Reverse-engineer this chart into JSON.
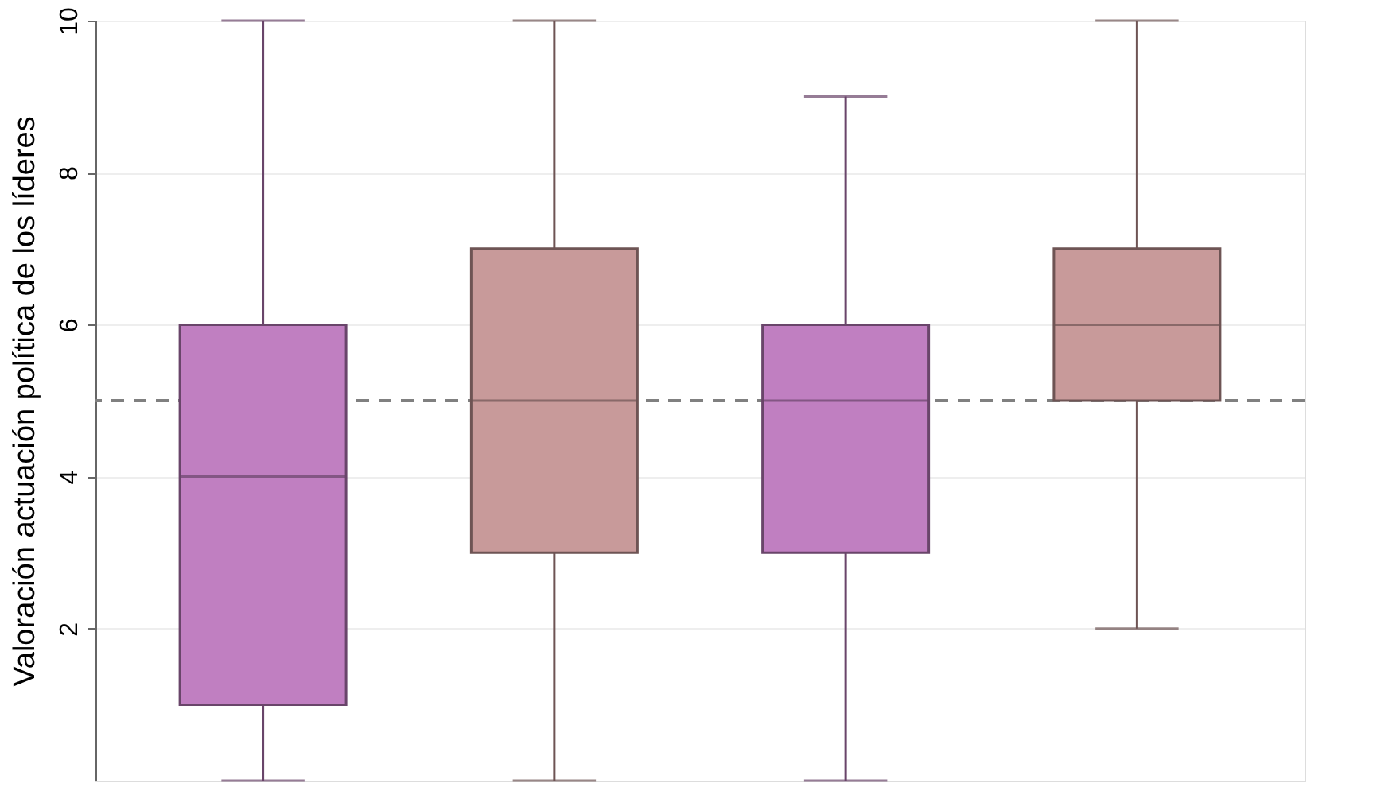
{
  "chart_data": {
    "type": "box",
    "ylabel": "Valoración actuación política de los líderes",
    "categories": [
      null,
      null,
      null,
      null
    ],
    "colors": [
      "#c07fc1",
      "#c89a9a",
      "#c07fc1",
      "#c89a9a"
    ],
    "boxes": [
      {
        "low": 0,
        "q1": 1,
        "median": 4,
        "q3": 6,
        "high": 10
      },
      {
        "low": 0,
        "q1": 3,
        "median": 5,
        "q3": 7,
        "high": 10
      },
      {
        "low": 0,
        "q1": 3,
        "median": 5,
        "q3": 6,
        "high": 9
      },
      {
        "low": 2,
        "q1": 5,
        "median": 6,
        "q3": 7,
        "high": 10
      }
    ],
    "ylim": [
      0,
      10
    ],
    "yticks": [
      2,
      4,
      6,
      8,
      10
    ],
    "grid": "y",
    "tick_labels": "y",
    "ref_lines": [
      {
        "axis": "y",
        "value": 5,
        "color": "#808080",
        "line_style": "dashed"
      }
    ]
  }
}
